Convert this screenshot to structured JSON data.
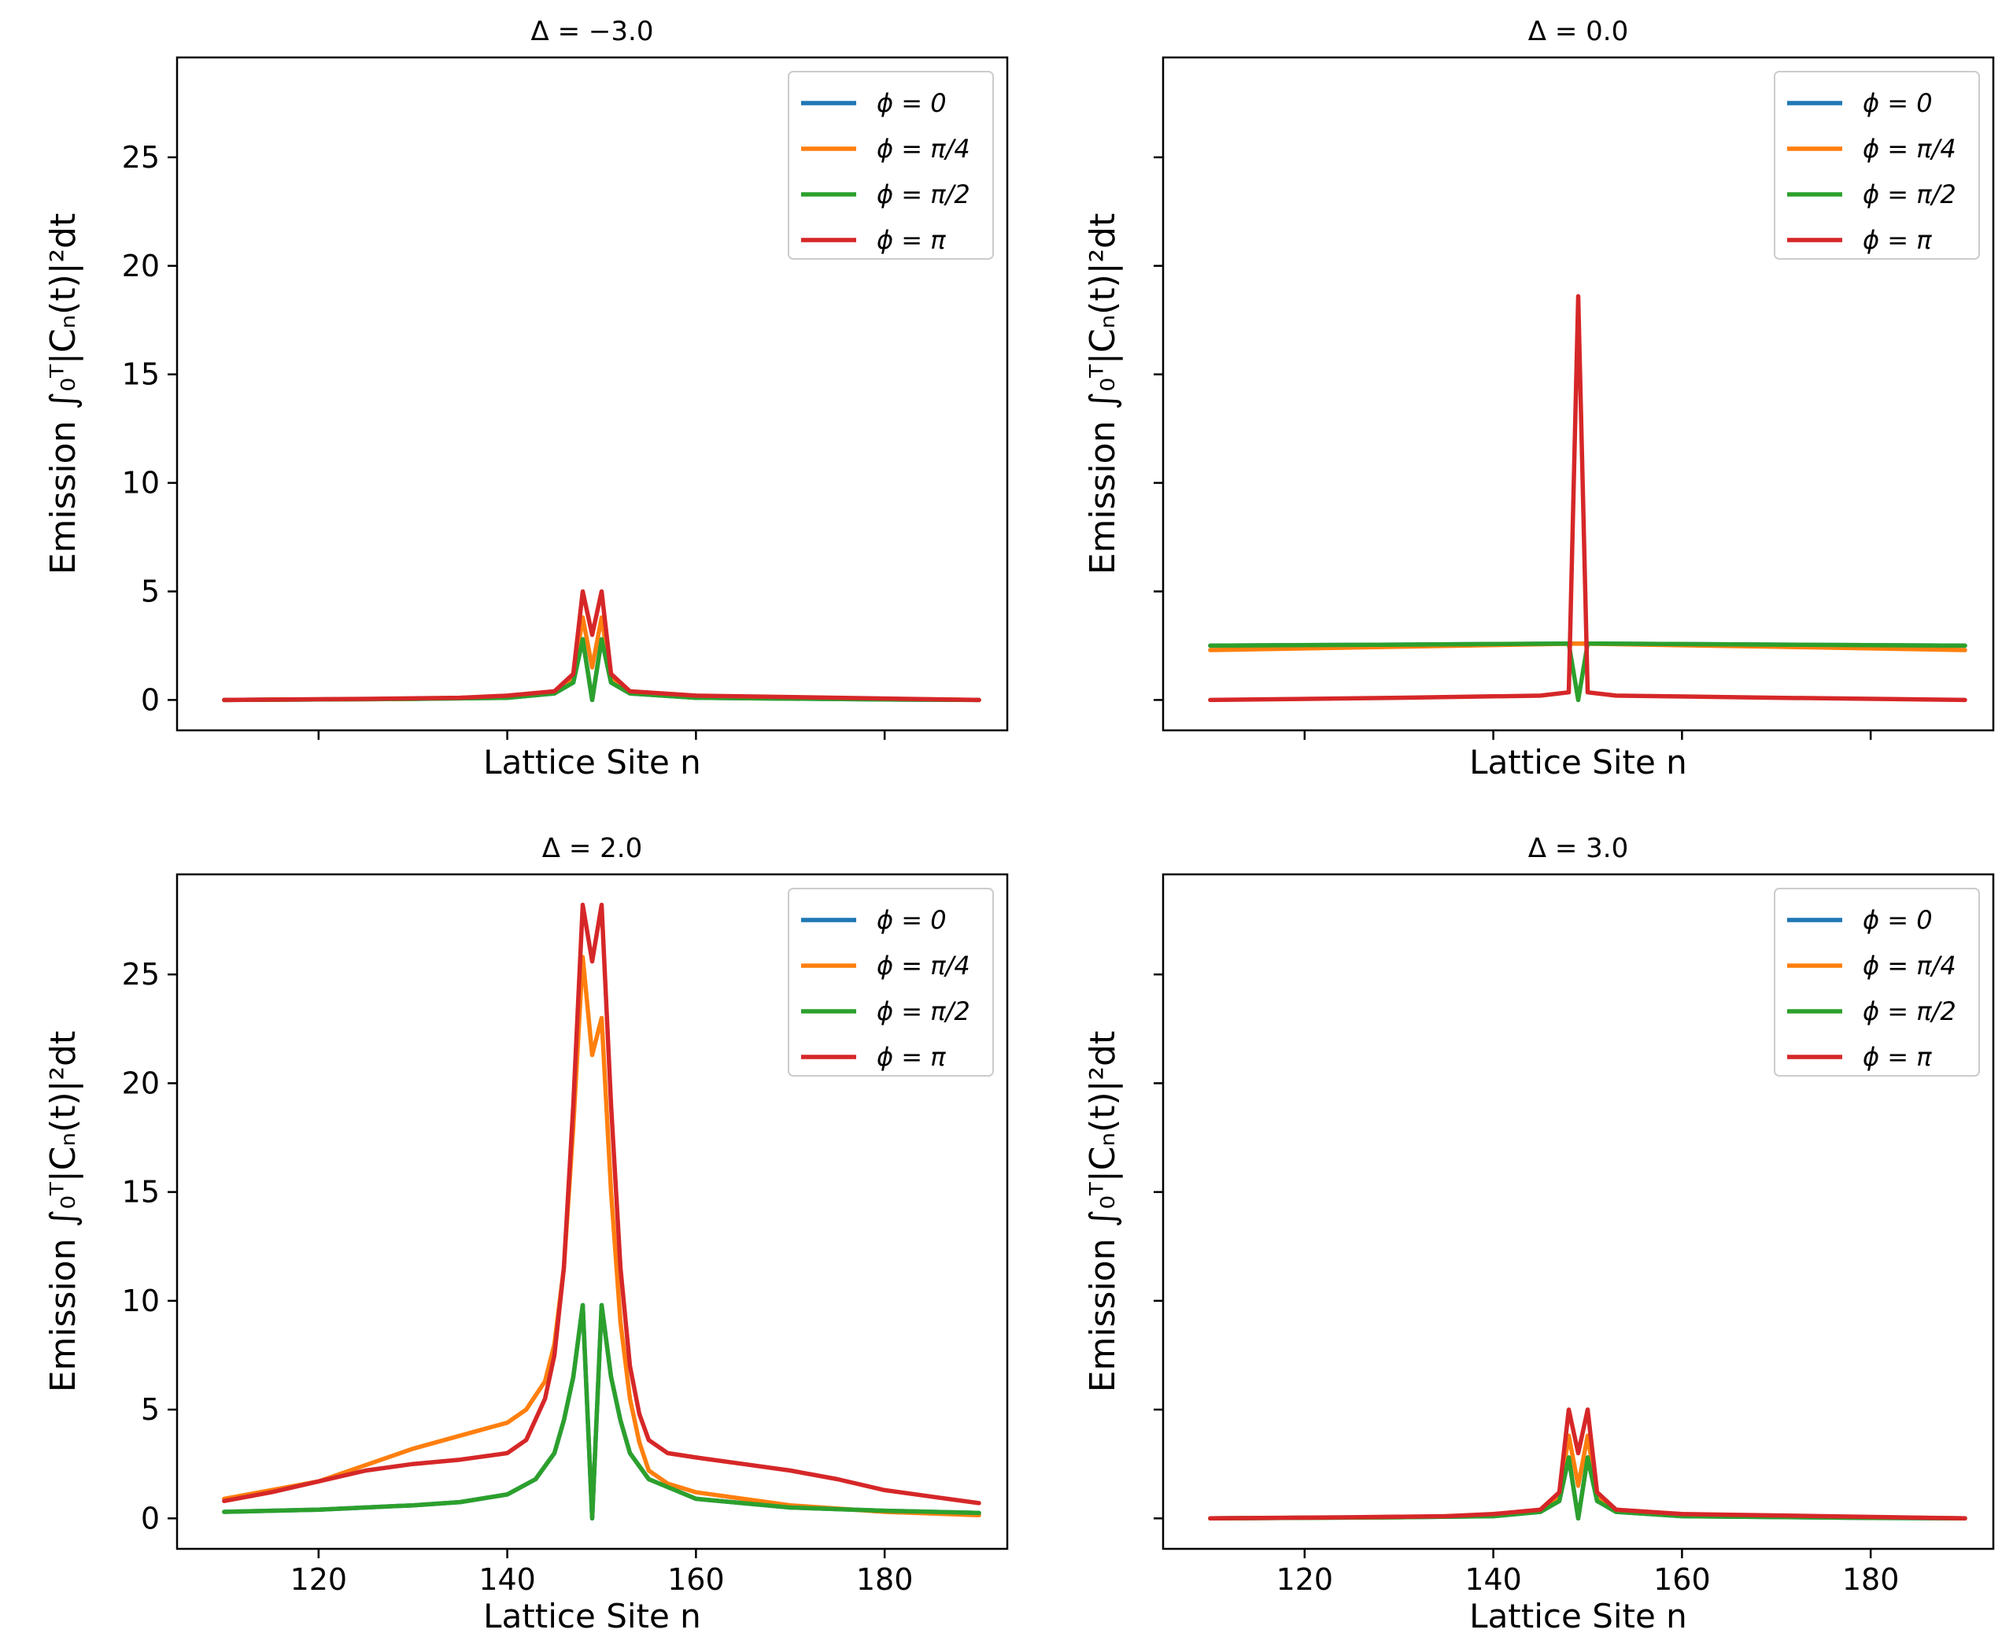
{
  "chart_data": {
    "type": "line",
    "layout": "2x2 grid, shared x and y axes",
    "shared": {
      "xlabel": "Lattice Site n",
      "ylabel": "Emission ∫₀ᵀ|Cₙ(t)|²dt",
      "xlim": [
        105,
        193
      ],
      "ylim": [
        -1.4,
        29.6
      ],
      "xticks": [
        120,
        140,
        160,
        180
      ],
      "yticks": [
        0,
        5,
        10,
        15,
        20,
        25
      ],
      "legend_position": "top-right",
      "series_names": [
        "ϕ = 0",
        "ϕ = π/4",
        "ϕ = π/2",
        "ϕ = π"
      ],
      "colors": [
        "#1f77b4",
        "#ff7f0e",
        "#2ca02c",
        "#d62728"
      ]
    },
    "panels": [
      {
        "title": "Δ = −3.0",
        "series": [
          {
            "name": "ϕ = 0",
            "points": [
              [
                110,
                0
              ],
              [
                130,
                0.05
              ],
              [
                140,
                0.1
              ],
              [
                145,
                0.3
              ],
              [
                147,
                0.8
              ],
              [
                148,
                2.8
              ],
              [
                149,
                0
              ],
              [
                150,
                2.8
              ],
              [
                151,
                0.8
              ],
              [
                153,
                0.3
              ],
              [
                160,
                0.1
              ],
              [
                180,
                0.02
              ],
              [
                190,
                0
              ]
            ]
          },
          {
            "name": "ϕ = π/4",
            "points": [
              [
                110,
                0
              ],
              [
                130,
                0.05
              ],
              [
                140,
                0.15
              ],
              [
                145,
                0.35
              ],
              [
                147,
                1.0
              ],
              [
                148,
                3.8
              ],
              [
                149,
                1.5
              ],
              [
                150,
                3.8
              ],
              [
                151,
                1.0
              ],
              [
                153,
                0.35
              ],
              [
                160,
                0.15
              ],
              [
                180,
                0.05
              ],
              [
                190,
                0
              ]
            ]
          },
          {
            "name": "ϕ = π/2",
            "points": [
              [
                110,
                0
              ],
              [
                130,
                0.05
              ],
              [
                140,
                0.1
              ],
              [
                145,
                0.3
              ],
              [
                147,
                0.8
              ],
              [
                148,
                2.8
              ],
              [
                149,
                0
              ],
              [
                150,
                2.8
              ],
              [
                151,
                0.8
              ],
              [
                153,
                0.3
              ],
              [
                160,
                0.1
              ],
              [
                180,
                0.02
              ],
              [
                190,
                0
              ]
            ]
          },
          {
            "name": "ϕ = π",
            "points": [
              [
                110,
                0
              ],
              [
                125,
                0.05
              ],
              [
                135,
                0.1
              ],
              [
                140,
                0.2
              ],
              [
                145,
                0.4
              ],
              [
                147,
                1.2
              ],
              [
                148,
                5.0
              ],
              [
                149,
                3.0
              ],
              [
                150,
                5.0
              ],
              [
                151,
                1.2
              ],
              [
                153,
                0.4
              ],
              [
                160,
                0.2
              ],
              [
                175,
                0.1
              ],
              [
                190,
                0
              ]
            ]
          }
        ]
      },
      {
        "title": "Δ = 0.0",
        "series": [
          {
            "name": "ϕ = 0",
            "points": [
              [
                110,
                2.5
              ],
              [
                130,
                2.55
              ],
              [
                149,
                2.6
              ],
              [
                170,
                2.55
              ],
              [
                190,
                2.5
              ]
            ]
          },
          {
            "name": "ϕ = π/4",
            "points": [
              [
                110,
                2.3
              ],
              [
                130,
                2.45
              ],
              [
                149,
                2.6
              ],
              [
                170,
                2.45
              ],
              [
                190,
                2.3
              ]
            ]
          },
          {
            "name": "ϕ = π/2",
            "points": [
              [
                110,
                2.5
              ],
              [
                130,
                2.55
              ],
              [
                148,
                2.6
              ],
              [
                149,
                0
              ],
              [
                150,
                2.6
              ],
              [
                170,
                2.55
              ],
              [
                190,
                2.5
              ]
            ]
          },
          {
            "name": "ϕ = π",
            "points": [
              [
                110,
                0
              ],
              [
                130,
                0.1
              ],
              [
                145,
                0.2
              ],
              [
                148,
                0.35
              ],
              [
                149,
                18.6
              ],
              [
                150,
                0.35
              ],
              [
                153,
                0.2
              ],
              [
                170,
                0.1
              ],
              [
                190,
                0
              ]
            ]
          }
        ]
      },
      {
        "title": "Δ = 2.0",
        "series": [
          {
            "name": "ϕ = 0",
            "points": [
              [
                110,
                0.3
              ],
              [
                120,
                0.4
              ],
              [
                130,
                0.6
              ],
              [
                135,
                0.75
              ],
              [
                140,
                1.1
              ],
              [
                143,
                1.8
              ],
              [
                145,
                3.0
              ],
              [
                146,
                4.5
              ],
              [
                147,
                6.5
              ],
              [
                148,
                9.8
              ],
              [
                149,
                0
              ],
              [
                150,
                9.8
              ],
              [
                151,
                6.5
              ],
              [
                152,
                4.5
              ],
              [
                153,
                3.0
              ],
              [
                155,
                1.8
              ],
              [
                160,
                0.9
              ],
              [
                170,
                0.5
              ],
              [
                180,
                0.35
              ],
              [
                190,
                0.25
              ]
            ]
          },
          {
            "name": "ϕ = π/4",
            "points": [
              [
                110,
                0.9
              ],
              [
                120,
                1.7
              ],
              [
                130,
                3.2
              ],
              [
                135,
                3.8
              ],
              [
                140,
                4.4
              ],
              [
                142,
                5.0
              ],
              [
                144,
                6.3
              ],
              [
                145,
                8.0
              ],
              [
                146,
                11.5
              ],
              [
                147,
                18.0
              ],
              [
                148,
                25.8
              ],
              [
                149,
                21.3
              ],
              [
                150,
                23.0
              ],
              [
                151,
                15.0
              ],
              [
                152,
                9.0
              ],
              [
                153,
                5.5
              ],
              [
                154,
                3.5
              ],
              [
                155,
                2.2
              ],
              [
                157,
                1.6
              ],
              [
                160,
                1.2
              ],
              [
                170,
                0.6
              ],
              [
                180,
                0.3
              ],
              [
                190,
                0.15
              ]
            ]
          },
          {
            "name": "ϕ = π/2",
            "points": [
              [
                110,
                0.3
              ],
              [
                120,
                0.4
              ],
              [
                130,
                0.6
              ],
              [
                135,
                0.75
              ],
              [
                140,
                1.1
              ],
              [
                143,
                1.8
              ],
              [
                145,
                3.0
              ],
              [
                146,
                4.5
              ],
              [
                147,
                6.5
              ],
              [
                148,
                9.8
              ],
              [
                149,
                0
              ],
              [
                150,
                9.8
              ],
              [
                151,
                6.5
              ],
              [
                152,
                4.5
              ],
              [
                153,
                3.0
              ],
              [
                155,
                1.8
              ],
              [
                160,
                0.9
              ],
              [
                170,
                0.5
              ],
              [
                180,
                0.35
              ],
              [
                190,
                0.25
              ]
            ]
          },
          {
            "name": "ϕ = π",
            "points": [
              [
                110,
                0.8
              ],
              [
                115,
                1.2
              ],
              [
                120,
                1.7
              ],
              [
                125,
                2.2
              ],
              [
                130,
                2.5
              ],
              [
                135,
                2.7
              ],
              [
                140,
                3.0
              ],
              [
                142,
                3.6
              ],
              [
                144,
                5.5
              ],
              [
                145,
                7.5
              ],
              [
                146,
                11.5
              ],
              [
                147,
                19.0
              ],
              [
                148,
                28.2
              ],
              [
                149,
                25.6
              ],
              [
                150,
                28.2
              ],
              [
                151,
                19.0
              ],
              [
                152,
                11.5
              ],
              [
                153,
                7.0
              ],
              [
                154,
                4.8
              ],
              [
                155,
                3.6
              ],
              [
                157,
                3.0
              ],
              [
                160,
                2.8
              ],
              [
                165,
                2.5
              ],
              [
                170,
                2.2
              ],
              [
                175,
                1.8
              ],
              [
                180,
                1.3
              ],
              [
                185,
                1.0
              ],
              [
                190,
                0.7
              ]
            ]
          }
        ]
      },
      {
        "title": "Δ = 3.0",
        "series": [
          {
            "name": "ϕ = 0",
            "points": [
              [
                110,
                0
              ],
              [
                130,
                0.05
              ],
              [
                140,
                0.1
              ],
              [
                145,
                0.3
              ],
              [
                147,
                0.8
              ],
              [
                148,
                2.8
              ],
              [
                149,
                0
              ],
              [
                150,
                2.8
              ],
              [
                151,
                0.8
              ],
              [
                153,
                0.3
              ],
              [
                160,
                0.1
              ],
              [
                180,
                0.02
              ],
              [
                190,
                0
              ]
            ]
          },
          {
            "name": "ϕ = π/4",
            "points": [
              [
                110,
                0
              ],
              [
                130,
                0.05
              ],
              [
                140,
                0.15
              ],
              [
                145,
                0.35
              ],
              [
                147,
                1.0
              ],
              [
                148,
                3.8
              ],
              [
                149,
                1.5
              ],
              [
                150,
                3.8
              ],
              [
                151,
                1.0
              ],
              [
                153,
                0.35
              ],
              [
                160,
                0.15
              ],
              [
                180,
                0.05
              ],
              [
                190,
                0
              ]
            ]
          },
          {
            "name": "ϕ = π/2",
            "points": [
              [
                110,
                0
              ],
              [
                130,
                0.05
              ],
              [
                140,
                0.1
              ],
              [
                145,
                0.3
              ],
              [
                147,
                0.8
              ],
              [
                148,
                2.8
              ],
              [
                149,
                0
              ],
              [
                150,
                2.8
              ],
              [
                151,
                0.8
              ],
              [
                153,
                0.3
              ],
              [
                160,
                0.1
              ],
              [
                180,
                0.02
              ],
              [
                190,
                0
              ]
            ]
          },
          {
            "name": "ϕ = π",
            "points": [
              [
                110,
                0
              ],
              [
                125,
                0.05
              ],
              [
                135,
                0.1
              ],
              [
                140,
                0.2
              ],
              [
                145,
                0.4
              ],
              [
                147,
                1.2
              ],
              [
                148,
                5.0
              ],
              [
                149,
                3.0
              ],
              [
                150,
                5.0
              ],
              [
                151,
                1.2
              ],
              [
                153,
                0.4
              ],
              [
                160,
                0.2
              ],
              [
                175,
                0.1
              ],
              [
                190,
                0
              ]
            ]
          }
        ]
      }
    ]
  }
}
